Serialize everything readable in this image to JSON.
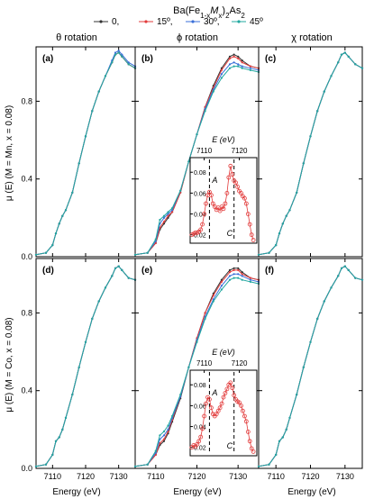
{
  "figure": {
    "legend_title": "Ba(Fe1-xMx)2As2",
    "legend_entries": [
      {
        "label": "0,",
        "color": "#333333",
        "marker": "square"
      },
      {
        "label": "15º,",
        "color": "#e23b3b",
        "marker": "circle"
      },
      {
        "label": "30º,",
        "color": "#3a6fd8",
        "marker": "triangle"
      },
      {
        "label": "45º",
        "color": "#22a8a0",
        "marker": "diamond"
      }
    ],
    "column_titles": [
      "θ rotation",
      "ϕ rotation",
      "χ rotation"
    ],
    "row_ylabels": [
      "μ (E) (M = Mn, x = 0.08)",
      "μ (E) (M = Co, x = 0.08)"
    ],
    "xlabel": "Energy (eV)",
    "panel_letters": [
      "(a)",
      "(b)",
      "(c)",
      "(d)",
      "(e)",
      "(f)"
    ],
    "inset_xlabel": "E (eV)",
    "inset_annotations": [
      "A",
      "C"
    ]
  },
  "chart_data": [
    {
      "type": "line",
      "panel": "(a)",
      "xlim": [
        7105,
        7135
      ],
      "ylim": [
        0,
        1.08
      ],
      "xticks": [
        7110,
        7120,
        7130
      ],
      "yticks": [
        0.0,
        0.4,
        0.8
      ],
      "x": [
        7105,
        7108,
        7110,
        7111,
        7112,
        7113,
        7114,
        7116,
        7118,
        7120,
        7122,
        7124,
        7126,
        7128,
        7129,
        7130,
        7131,
        7133,
        7135
      ],
      "series": [
        {
          "name": "0,",
          "values": [
            0.01,
            0.02,
            0.06,
            0.12,
            0.17,
            0.21,
            0.24,
            0.33,
            0.48,
            0.62,
            0.75,
            0.85,
            0.93,
            1.0,
            1.04,
            1.05,
            1.03,
            0.99,
            0.97
          ]
        },
        {
          "name": "15º,",
          "values": [
            0.01,
            0.02,
            0.06,
            0.12,
            0.17,
            0.21,
            0.24,
            0.33,
            0.48,
            0.62,
            0.75,
            0.85,
            0.93,
            1.0,
            1.04,
            1.05,
            1.03,
            0.99,
            0.97
          ]
        },
        {
          "name": "30º,",
          "values": [
            0.01,
            0.02,
            0.06,
            0.12,
            0.17,
            0.21,
            0.24,
            0.33,
            0.48,
            0.62,
            0.75,
            0.85,
            0.93,
            1.01,
            1.05,
            1.06,
            1.04,
            1.0,
            0.98
          ]
        },
        {
          "name": "45º",
          "values": [
            0.01,
            0.02,
            0.06,
            0.12,
            0.17,
            0.21,
            0.24,
            0.33,
            0.48,
            0.62,
            0.75,
            0.85,
            0.93,
            1.0,
            1.04,
            1.05,
            1.03,
            0.99,
            0.97
          ]
        }
      ]
    },
    {
      "type": "line",
      "panel": "(b)",
      "xlim": [
        7105,
        7135
      ],
      "ylim": [
        0,
        1.08
      ],
      "xticks": [
        7110,
        7120,
        7130
      ],
      "x": [
        7105,
        7108,
        7110,
        7111,
        7112,
        7113,
        7114,
        7116,
        7118,
        7120,
        7122,
        7124,
        7126,
        7128,
        7129,
        7130,
        7131,
        7133,
        7135
      ],
      "series": [
        {
          "name": "0,",
          "values": [
            0.01,
            0.02,
            0.07,
            0.14,
            0.17,
            0.2,
            0.23,
            0.33,
            0.49,
            0.63,
            0.77,
            0.88,
            0.97,
            1.03,
            1.04,
            1.03,
            1.01,
            0.98,
            0.97
          ]
        },
        {
          "name": "15º,",
          "values": [
            0.01,
            0.02,
            0.07,
            0.15,
            0.18,
            0.21,
            0.23,
            0.33,
            0.49,
            0.63,
            0.77,
            0.87,
            0.96,
            1.02,
            1.03,
            1.02,
            1.0,
            0.98,
            0.97
          ]
        },
        {
          "name": "30º,",
          "values": [
            0.01,
            0.02,
            0.08,
            0.17,
            0.2,
            0.22,
            0.24,
            0.34,
            0.49,
            0.63,
            0.76,
            0.86,
            0.94,
            0.99,
            1.0,
            0.99,
            0.98,
            0.97,
            0.96
          ]
        },
        {
          "name": "45º",
          "values": [
            0.01,
            0.02,
            0.09,
            0.19,
            0.21,
            0.23,
            0.25,
            0.34,
            0.49,
            0.63,
            0.75,
            0.85,
            0.92,
            0.97,
            0.98,
            0.98,
            0.97,
            0.96,
            0.95
          ]
        }
      ],
      "inset": {
        "type": "scatter",
        "xlim": [
          7106,
          7125
        ],
        "ylim": [
          0.012,
          0.094
        ],
        "xticks": [
          7110,
          7120
        ],
        "yticks": [
          0.02,
          0.04,
          0.06,
          0.08
        ],
        "dashed_lines_x": [
          7111.5,
          7118.5
        ],
        "x": [
          7106.5,
          7107,
          7107.5,
          7108,
          7108.5,
          7109,
          7109.5,
          7110,
          7110.5,
          7111,
          7111.5,
          7112,
          7112.5,
          7113,
          7113.5,
          7114,
          7114.5,
          7115,
          7115.5,
          7116,
          7116.5,
          7117,
          7117.5,
          7118,
          7118.5,
          7119,
          7119.5,
          7120,
          7120.5,
          7121,
          7121.5,
          7122,
          7122.5,
          7123,
          7123.5,
          7124
        ],
        "values": [
          0.02,
          0.021,
          0.022,
          0.022,
          0.023,
          0.025,
          0.03,
          0.04,
          0.05,
          0.058,
          0.061,
          0.058,
          0.05,
          0.047,
          0.044,
          0.046,
          0.043,
          0.047,
          0.045,
          0.05,
          0.06,
          0.075,
          0.086,
          0.078,
          0.072,
          0.07,
          0.066,
          0.062,
          0.06,
          0.057,
          0.055,
          0.05,
          0.04,
          0.03,
          0.02,
          0.015
        ]
      }
    },
    {
      "type": "line",
      "panel": "(c)",
      "xlim": [
        7105,
        7135
      ],
      "ylim": [
        0,
        1.08
      ],
      "xticks": [
        7110,
        7120,
        7130
      ],
      "x": [
        7105,
        7108,
        7110,
        7111,
        7112,
        7113,
        7114,
        7116,
        7118,
        7120,
        7122,
        7124,
        7126,
        7128,
        7129,
        7130,
        7131,
        7133,
        7135
      ],
      "series": [
        {
          "name": "0,",
          "values": [
            0.01,
            0.02,
            0.06,
            0.12,
            0.17,
            0.21,
            0.24,
            0.33,
            0.48,
            0.62,
            0.75,
            0.85,
            0.93,
            1.0,
            1.04,
            1.05,
            1.03,
            0.99,
            0.97
          ]
        },
        {
          "name": "15º,",
          "values": [
            0.01,
            0.02,
            0.06,
            0.12,
            0.17,
            0.21,
            0.24,
            0.33,
            0.48,
            0.62,
            0.75,
            0.85,
            0.93,
            1.0,
            1.04,
            1.05,
            1.03,
            0.99,
            0.97
          ]
        },
        {
          "name": "30º,",
          "values": [
            0.01,
            0.02,
            0.06,
            0.12,
            0.17,
            0.21,
            0.24,
            0.33,
            0.48,
            0.62,
            0.75,
            0.85,
            0.93,
            1.0,
            1.04,
            1.05,
            1.03,
            0.99,
            0.97
          ]
        },
        {
          "name": "45º",
          "values": [
            0.01,
            0.02,
            0.06,
            0.12,
            0.17,
            0.21,
            0.24,
            0.33,
            0.48,
            0.62,
            0.75,
            0.85,
            0.93,
            1.0,
            1.04,
            1.05,
            1.03,
            0.99,
            0.97
          ]
        }
      ]
    },
    {
      "type": "line",
      "panel": "(d)",
      "xlim": [
        7105,
        7135
      ],
      "ylim": [
        0,
        1.08
      ],
      "xticks": [
        7110,
        7120,
        7130
      ],
      "yticks": [
        0.0,
        0.4,
        0.8
      ],
      "x": [
        7105,
        7108,
        7110,
        7111,
        7112,
        7113,
        7114,
        7116,
        7118,
        7120,
        7122,
        7124,
        7126,
        7128,
        7129,
        7130,
        7131,
        7133,
        7135
      ],
      "series": [
        {
          "name": "0,",
          "values": [
            0.01,
            0.02,
            0.07,
            0.14,
            0.16,
            0.2,
            0.26,
            0.38,
            0.52,
            0.65,
            0.77,
            0.86,
            0.93,
            0.99,
            1.03,
            1.04,
            1.02,
            0.98,
            0.97
          ]
        },
        {
          "name": "15º,",
          "values": [
            0.01,
            0.02,
            0.07,
            0.14,
            0.16,
            0.2,
            0.26,
            0.38,
            0.52,
            0.65,
            0.77,
            0.86,
            0.93,
            0.99,
            1.03,
            1.04,
            1.02,
            0.98,
            0.97
          ]
        },
        {
          "name": "30º,",
          "values": [
            0.01,
            0.02,
            0.07,
            0.14,
            0.16,
            0.2,
            0.26,
            0.38,
            0.52,
            0.65,
            0.77,
            0.86,
            0.93,
            0.99,
            1.03,
            1.04,
            1.02,
            0.98,
            0.97
          ]
        },
        {
          "name": "45º",
          "values": [
            0.01,
            0.02,
            0.07,
            0.14,
            0.16,
            0.2,
            0.26,
            0.38,
            0.52,
            0.65,
            0.77,
            0.86,
            0.93,
            0.99,
            1.03,
            1.04,
            1.02,
            0.98,
            0.97
          ]
        }
      ]
    },
    {
      "type": "line",
      "panel": "(e)",
      "xlim": [
        7105,
        7135
      ],
      "ylim": [
        0,
        1.08
      ],
      "xticks": [
        7110,
        7120,
        7130
      ],
      "x": [
        7105,
        7108,
        7110,
        7111,
        7112,
        7113,
        7114,
        7116,
        7118,
        7120,
        7122,
        7124,
        7126,
        7128,
        7129,
        7130,
        7131,
        7133,
        7135
      ],
      "series": [
        {
          "name": "0,",
          "values": [
            0.01,
            0.02,
            0.07,
            0.12,
            0.14,
            0.18,
            0.24,
            0.36,
            0.52,
            0.67,
            0.8,
            0.9,
            0.97,
            1.02,
            1.03,
            1.03,
            1.01,
            0.98,
            0.97
          ]
        },
        {
          "name": "15º,",
          "values": [
            0.01,
            0.02,
            0.07,
            0.13,
            0.15,
            0.19,
            0.25,
            0.37,
            0.52,
            0.67,
            0.8,
            0.89,
            0.96,
            1.01,
            1.02,
            1.02,
            1.0,
            0.98,
            0.97
          ]
        },
        {
          "name": "30º,",
          "values": [
            0.01,
            0.02,
            0.08,
            0.15,
            0.17,
            0.2,
            0.26,
            0.37,
            0.52,
            0.66,
            0.78,
            0.87,
            0.94,
            0.99,
            1.0,
            1.0,
            0.99,
            0.97,
            0.96
          ]
        },
        {
          "name": "45º",
          "values": [
            0.01,
            0.02,
            0.09,
            0.17,
            0.19,
            0.22,
            0.27,
            0.38,
            0.52,
            0.65,
            0.77,
            0.86,
            0.92,
            0.97,
            0.98,
            0.98,
            0.97,
            0.96,
            0.95
          ]
        }
      ],
      "inset": {
        "type": "scatter",
        "xlim": [
          7106,
          7125
        ],
        "ylim": [
          0.012,
          0.094
        ],
        "xticks": [
          7110,
          7120
        ],
        "yticks": [
          0.02,
          0.04,
          0.06,
          0.08
        ],
        "dashed_lines_x": [
          7111.5,
          7118.5
        ],
        "x": [
          7106.5,
          7107,
          7107.5,
          7108,
          7108.5,
          7109,
          7109.5,
          7110,
          7110.5,
          7111,
          7111.5,
          7112,
          7112.5,
          7113,
          7113.5,
          7114,
          7114.5,
          7115,
          7115.5,
          7116,
          7116.5,
          7117,
          7117.5,
          7118,
          7118.5,
          7119,
          7119.5,
          7120,
          7120.5,
          7121,
          7121.5,
          7122,
          7122.5,
          7123,
          7123.5,
          7124
        ],
        "values": [
          0.02,
          0.022,
          0.021,
          0.023,
          0.026,
          0.03,
          0.038,
          0.05,
          0.062,
          0.068,
          0.066,
          0.058,
          0.052,
          0.05,
          0.052,
          0.055,
          0.058,
          0.062,
          0.068,
          0.072,
          0.076,
          0.08,
          0.082,
          0.077,
          0.07,
          0.066,
          0.064,
          0.063,
          0.06,
          0.055,
          0.05,
          0.045,
          0.035,
          0.026,
          0.019,
          0.016
        ]
      }
    },
    {
      "type": "line",
      "panel": "(f)",
      "xlim": [
        7105,
        7135
      ],
      "ylim": [
        0,
        1.08
      ],
      "xticks": [
        7110,
        7120,
        7130
      ],
      "x": [
        7105,
        7108,
        7110,
        7111,
        7112,
        7113,
        7114,
        7116,
        7118,
        7120,
        7122,
        7124,
        7126,
        7128,
        7129,
        7130,
        7131,
        7133,
        7135
      ],
      "series": [
        {
          "name": "0,",
          "values": [
            0.01,
            0.02,
            0.07,
            0.14,
            0.16,
            0.2,
            0.26,
            0.38,
            0.52,
            0.65,
            0.77,
            0.86,
            0.93,
            0.99,
            1.03,
            1.04,
            1.02,
            0.98,
            0.97
          ]
        },
        {
          "name": "15º,",
          "values": [
            0.01,
            0.02,
            0.07,
            0.14,
            0.16,
            0.2,
            0.26,
            0.38,
            0.52,
            0.65,
            0.77,
            0.86,
            0.93,
            0.99,
            1.03,
            1.04,
            1.02,
            0.98,
            0.97
          ]
        },
        {
          "name": "30º,",
          "values": [
            0.01,
            0.02,
            0.07,
            0.14,
            0.16,
            0.2,
            0.26,
            0.38,
            0.52,
            0.65,
            0.77,
            0.86,
            0.93,
            0.99,
            1.03,
            1.04,
            1.02,
            0.98,
            0.97
          ]
        },
        {
          "name": "45º",
          "values": [
            0.01,
            0.02,
            0.07,
            0.14,
            0.16,
            0.2,
            0.26,
            0.38,
            0.52,
            0.65,
            0.77,
            0.86,
            0.93,
            0.99,
            1.03,
            1.04,
            1.02,
            0.98,
            0.97
          ]
        }
      ]
    }
  ]
}
